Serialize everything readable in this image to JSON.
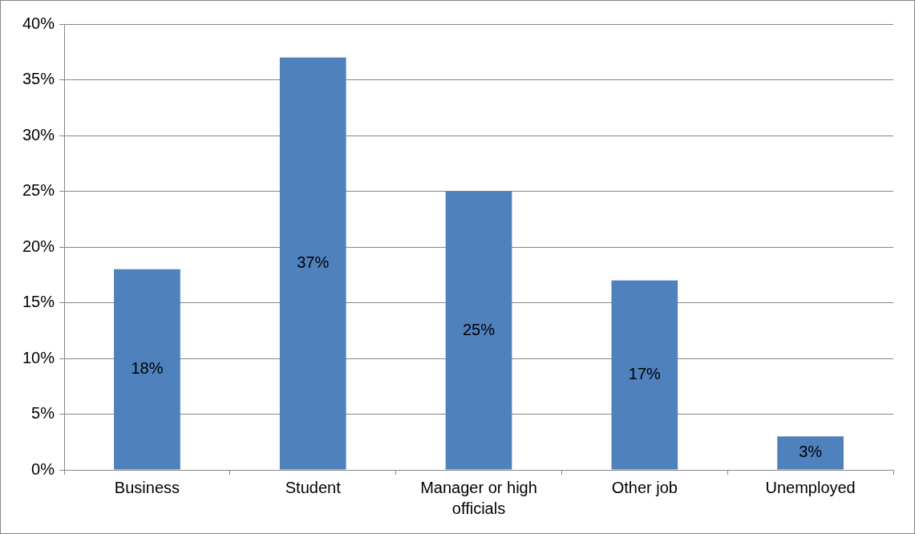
{
  "chart_data": {
    "type": "bar",
    "categories": [
      "Business",
      "Student",
      "Manager or high officials",
      "Other job",
      "Unemployed"
    ],
    "values": [
      18,
      37,
      25,
      17,
      3
    ],
    "color": "#4f81bd",
    "value_labels": [
      "18%",
      "37%",
      "25%",
      "17%",
      "3%"
    ],
    "ylim": [
      0,
      40
    ],
    "yticks": [
      {
        "value": 0,
        "label": "0%"
      },
      {
        "value": 5,
        "label": "5%"
      },
      {
        "value": 10,
        "label": "10%"
      },
      {
        "value": 15,
        "label": "15%"
      },
      {
        "value": 20,
        "label": "20%"
      },
      {
        "value": 25,
        "label": "25%"
      },
      {
        "value": 30,
        "label": "30%"
      },
      {
        "value": 35,
        "label": "35%"
      },
      {
        "value": 40,
        "label": "40%"
      }
    ],
    "grid": "y",
    "legend": false
  }
}
